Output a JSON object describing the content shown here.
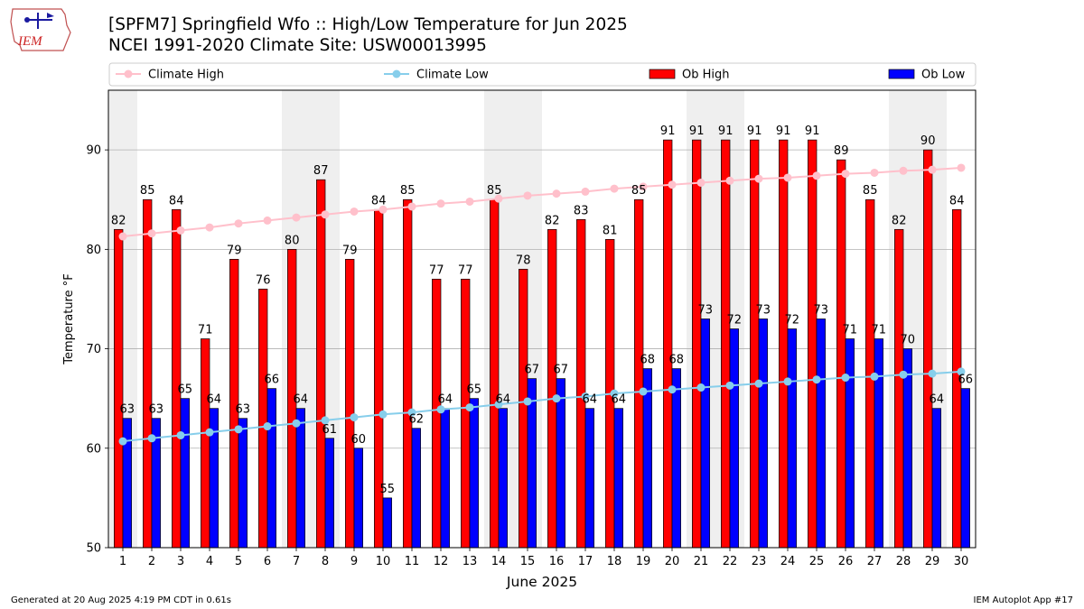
{
  "header": {
    "title": "[SPFM7] Springfield Wfo :: High/Low Temperature for Jun 2025",
    "subtitle": "NCEI 1991-2020 Climate Site: USW00013995",
    "logo_text": "IEM"
  },
  "footer": {
    "generated": "Generated at 20 Aug 2025 4:19 PM CDT in 0.61s",
    "app": "IEM Autoplot App #17"
  },
  "colors": {
    "ob_high": "#ff0000",
    "ob_low": "#0000ff",
    "climate_high": "#ffc0cb",
    "climate_low": "#87ceeb",
    "weekend_shade": "#efefef",
    "grid": "#b0b0b0"
  },
  "chart_data": {
    "type": "bar",
    "xlabel": "June 2025",
    "ylabel": "Temperature °F",
    "xlim": [
      0.5,
      30.5
    ],
    "ylim": [
      50,
      96
    ],
    "yticks": [
      50,
      60,
      70,
      80,
      90
    ],
    "grid": true,
    "legend_position": "top",
    "legend": [
      "Climate High",
      "Climate Low",
      "Ob High",
      "Ob Low"
    ],
    "categories": [
      1,
      2,
      3,
      4,
      5,
      6,
      7,
      8,
      9,
      10,
      11,
      12,
      13,
      14,
      15,
      16,
      17,
      18,
      19,
      20,
      21,
      22,
      23,
      24,
      25,
      26,
      27,
      28,
      29,
      30
    ],
    "shaded_days": [
      1,
      7,
      8,
      14,
      15,
      21,
      22,
      28,
      29
    ],
    "series": [
      {
        "name": "Ob High",
        "kind": "bar",
        "values": [
          82,
          85,
          84,
          71,
          79,
          76,
          80,
          87,
          79,
          84,
          85,
          77,
          77,
          85,
          78,
          82,
          83,
          81,
          85,
          91,
          91,
          91,
          91,
          91,
          91,
          89,
          85,
          82,
          90,
          84
        ]
      },
      {
        "name": "Ob Low",
        "kind": "bar",
        "values": [
          63,
          63,
          65,
          64,
          63,
          66,
          64,
          61,
          60,
          55,
          62,
          64,
          65,
          64,
          67,
          67,
          64,
          64,
          68,
          68,
          73,
          72,
          73,
          72,
          73,
          71,
          71,
          70,
          64,
          66
        ]
      },
      {
        "name": "Climate High",
        "kind": "line",
        "values": [
          81.3,
          81.6,
          81.9,
          82.2,
          82.6,
          82.9,
          83.2,
          83.5,
          83.8,
          84.0,
          84.3,
          84.6,
          84.8,
          85.1,
          85.4,
          85.6,
          85.8,
          86.1,
          86.3,
          86.5,
          86.7,
          86.9,
          87.1,
          87.2,
          87.4,
          87.6,
          87.7,
          87.9,
          88.0,
          88.2
        ]
      },
      {
        "name": "Climate Low",
        "kind": "line",
        "values": [
          60.7,
          61.0,
          61.3,
          61.6,
          61.9,
          62.2,
          62.5,
          62.8,
          63.1,
          63.4,
          63.6,
          63.9,
          64.1,
          64.4,
          64.7,
          65.0,
          65.2,
          65.5,
          65.7,
          65.9,
          66.1,
          66.3,
          66.5,
          66.7,
          66.9,
          67.1,
          67.2,
          67.4,
          67.5,
          67.7
        ]
      }
    ]
  }
}
